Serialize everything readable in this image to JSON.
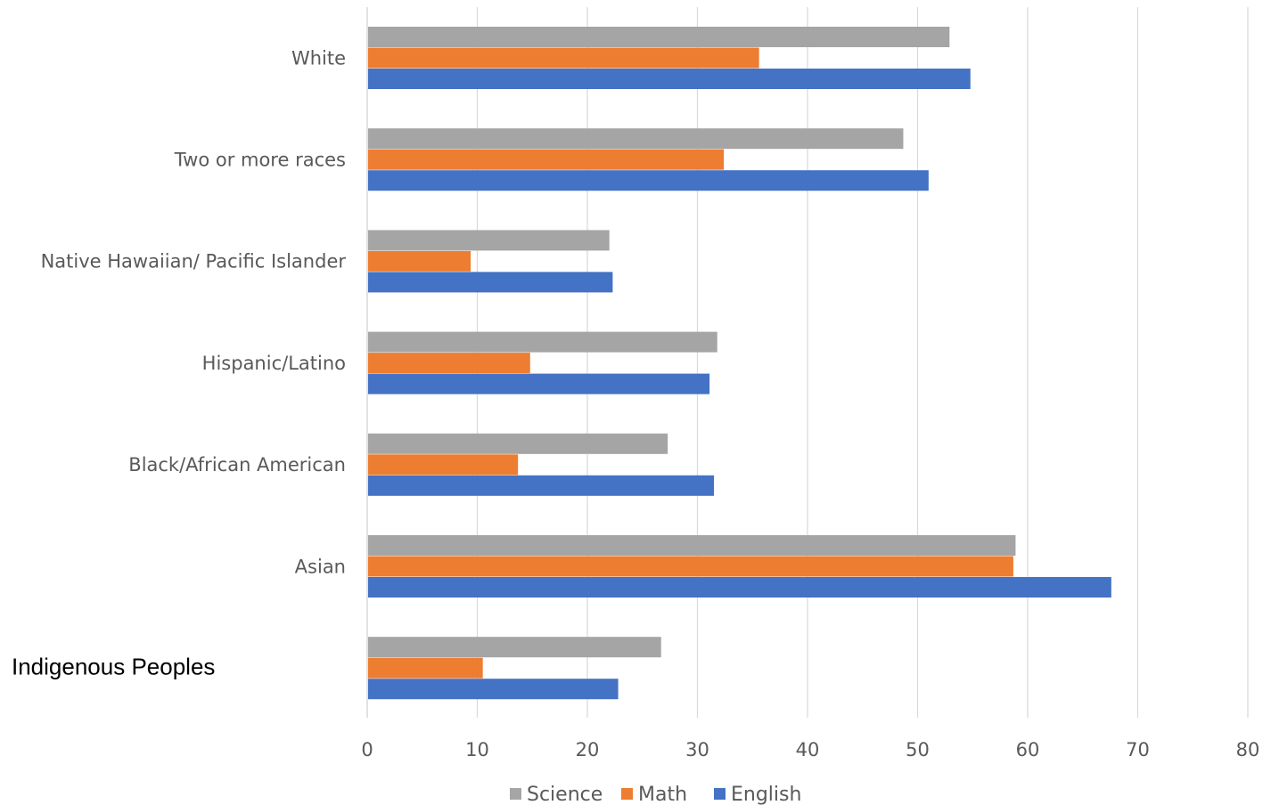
{
  "chart_data": {
    "type": "bar",
    "orientation": "horizontal",
    "categories": [
      "White",
      "Two or more races",
      "Native Hawaiian/ Pacific Islander",
      "Hispanic/Latino",
      "Black/African American",
      "Asian",
      "Indigenous Peoples"
    ],
    "series": [
      {
        "name": "Science",
        "color": "#a5a5a5",
        "values": [
          52.9,
          48.7,
          22.0,
          31.8,
          27.3,
          58.9,
          26.7
        ]
      },
      {
        "name": "Math",
        "color": "#ed7d31",
        "values": [
          35.6,
          32.4,
          9.4,
          14.8,
          13.7,
          58.7,
          10.5
        ]
      },
      {
        "name": "English",
        "color": "#4472c4",
        "values": [
          54.8,
          51.0,
          22.3,
          31.1,
          31.5,
          67.6,
          22.8
        ]
      }
    ],
    "xlim": [
      0,
      80
    ],
    "xticks": [
      "0",
      "10",
      "20",
      "30",
      "40",
      "50",
      "60",
      "70",
      "80"
    ],
    "grid": true,
    "legend_position": "bottom"
  }
}
